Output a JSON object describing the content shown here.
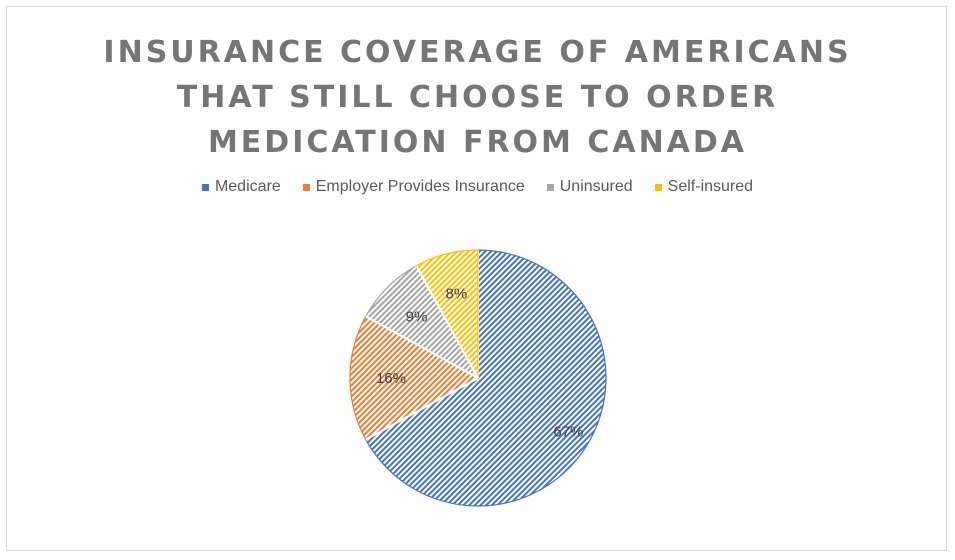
{
  "colors": {
    "Medicare": "#4472c4",
    "Employer Provides Insurance": "#ed7d31",
    "Uninsured": "#a5a5a5",
    "Self-insured": "#ffc000"
  },
  "chart_data": {
    "type": "pie",
    "title_lines": [
      "INSURANCE COVERAGE OF AMERICANS",
      "THAT STILL CHOOSE TO ORDER",
      "MEDICATION FROM CANADA"
    ],
    "legend_position": "top",
    "categories": [
      "Medicare",
      "Employer Provides Insurance",
      "Uninsured",
      "Self-insured"
    ],
    "values": [
      67,
      16,
      9,
      8
    ],
    "labels": [
      "67%",
      "16%",
      "9%",
      "8%"
    ]
  }
}
